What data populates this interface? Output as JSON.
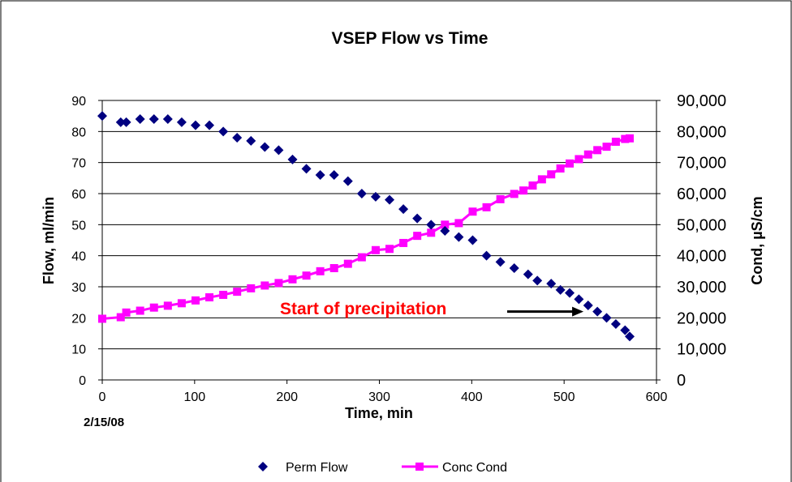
{
  "chart_data": {
    "type": "line",
    "title": "VSEP Flow vs Time",
    "xlabel": "Time, min",
    "ylabel": "Flow, ml/min",
    "y2label": "Cond, µS/cm",
    "xlim": [
      0,
      600
    ],
    "ylim": [
      0,
      90
    ],
    "y2lim": [
      0,
      90000
    ],
    "xticks": [
      "0",
      "100",
      "200",
      "300",
      "400",
      "500",
      "600"
    ],
    "yticks": [
      "0",
      "10",
      "20",
      "30",
      "40",
      "50",
      "60",
      "70",
      "80",
      "90"
    ],
    "y2ticks": [
      "0",
      "10,000",
      "20,000",
      "30,000",
      "40,000",
      "50,000",
      "60,000",
      "70,000",
      "80,000",
      "90,000"
    ],
    "grid": "horizontal",
    "legend_position": "bottom",
    "date_note": "2/15/08",
    "annotation": {
      "text": "Start of precipitation",
      "color": "#ff0000",
      "arrow_target": {
        "x": 521,
        "y": 22
      }
    },
    "colors": {
      "perm_flow": "#000080",
      "conc_cond": "#ff00ff",
      "plot_bg": "#ffffff",
      "grid": "#000000"
    },
    "series": [
      {
        "name": "Perm Flow",
        "axis": "left",
        "marker": "diamond",
        "line": false,
        "x": [
          0,
          20,
          26,
          41,
          56,
          71,
          86,
          101,
          116,
          131,
          146,
          161,
          176,
          191,
          206,
          221,
          236,
          251,
          266,
          281,
          296,
          311,
          326,
          341,
          356,
          371,
          386,
          401,
          416,
          431,
          446,
          461,
          471,
          486,
          496,
          506,
          516,
          526,
          536,
          546,
          556,
          566,
          571
        ],
        "values": [
          85,
          83,
          83,
          84,
          84,
          84,
          83,
          82,
          82,
          80,
          78,
          77,
          75,
          74,
          71,
          68,
          66,
          66,
          64,
          60,
          59,
          58,
          55,
          52,
          50,
          48,
          46,
          45,
          40,
          38,
          36,
          34,
          32,
          31,
          29,
          28,
          26,
          24,
          22,
          20,
          18,
          16,
          14
        ]
      },
      {
        "name": "Conc Cond",
        "axis": "right",
        "marker": "square",
        "line": true,
        "x": [
          0,
          20,
          26,
          41,
          56,
          71,
          86,
          101,
          116,
          131,
          146,
          161,
          176,
          191,
          206,
          221,
          236,
          251,
          266,
          281,
          296,
          311,
          326,
          341,
          356,
          371,
          386,
          401,
          416,
          431,
          446,
          456,
          466,
          476,
          486,
          496,
          506,
          516,
          526,
          536,
          546,
          556,
          566,
          571
        ],
        "values": [
          19700,
          20200,
          21700,
          22300,
          23300,
          23900,
          24700,
          25600,
          26600,
          27400,
          28400,
          29500,
          30400,
          31200,
          32400,
          33600,
          35000,
          36000,
          37400,
          39500,
          41800,
          42200,
          44100,
          46400,
          47400,
          50000,
          50500,
          54200,
          55600,
          58200,
          59900,
          61000,
          62600,
          64600,
          66200,
          68100,
          69700,
          71100,
          72600,
          74000,
          75100,
          76700,
          77600,
          77800
        ]
      }
    ]
  }
}
